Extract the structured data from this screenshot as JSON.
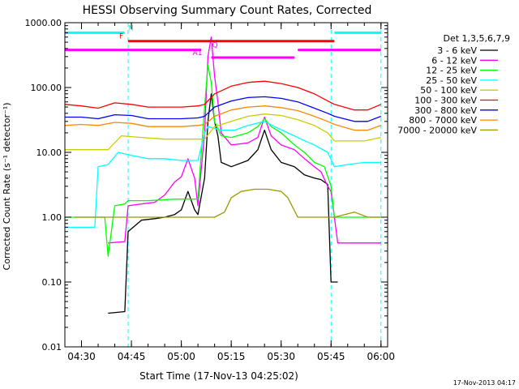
{
  "chart_data": {
    "type": "line",
    "title": "HESSI Observing Summary Count Rates, Corrected",
    "xlabel": "Start Time (17-Nov-13 04:25:02)",
    "ylabel": "Corrected Count Rate (s⁻¹ detector⁻¹)",
    "yscale": "log",
    "ylim": [
      0.01,
      1000
    ],
    "xlim": [
      "04:25",
      "06:02"
    ],
    "yticks": [
      {
        "v": 1000,
        "label": "1000.00"
      },
      {
        "v": 100,
        "label": "100.00"
      },
      {
        "v": 10,
        "label": "10.00"
      },
      {
        "v": 1,
        "label": "1.00"
      },
      {
        "v": 0.1,
        "label": "0.10"
      },
      {
        "v": 0.01,
        "label": "0.01"
      }
    ],
    "xticks": [
      {
        "t": "04:30",
        "label": "04:30"
      },
      {
        "t": "04:45",
        "label": "04:45"
      },
      {
        "t": "05:00",
        "label": "05:00"
      },
      {
        "t": "05:15",
        "label": "05:15"
      },
      {
        "t": "05:30",
        "label": "05:30"
      },
      {
        "t": "05:45",
        "label": "05:45"
      },
      {
        "t": "06:00",
        "label": "06:00"
      }
    ],
    "legend_title": "Det 1,3,5,6,7,9",
    "legend_position": "right",
    "footer": "17-Nov-2013 04:17",
    "flags": [
      {
        "label": "N",
        "color": "#00ffff",
        "segments": [
          [
            "04:25",
            "04:43"
          ],
          [
            "05:46",
            "06:00"
          ]
        ],
        "y": 700
      },
      {
        "label": "F",
        "color": "#ff0000",
        "segments": [
          [
            "04:44",
            "05:46"
          ]
        ],
        "y": 520
      },
      {
        "label": "A1",
        "color": "#ff00ff",
        "segments": [
          [
            "05:09",
            "05:34"
          ]
        ],
        "y": 290
      },
      {
        "label": "Q",
        "color": "#ff00ff",
        "segments": [
          [
            "04:25",
            "05:06"
          ],
          [
            "05:35",
            "06:00"
          ]
        ],
        "y": 380
      }
    ],
    "vlines": [
      {
        "t": "04:44",
        "color": "#00ffff",
        "style": "dashed"
      },
      {
        "t": "05:45",
        "color": "#00ffff",
        "style": "dashed"
      },
      {
        "t": "06:00",
        "color": "#00ffff",
        "style": "dashed"
      }
    ],
    "series": [
      {
        "name": "3 - 6 keV",
        "color": "#000000",
        "points": [
          [
            "04:38",
            0.033
          ],
          [
            "04:43",
            0.035
          ],
          [
            "04:44",
            0.6
          ],
          [
            "04:48",
            0.9
          ],
          [
            "04:52",
            0.95
          ],
          [
            "04:55",
            1.0
          ],
          [
            "04:58",
            1.1
          ],
          [
            "05:00",
            1.3
          ],
          [
            "05:02",
            2.5
          ],
          [
            "05:04",
            1.3
          ],
          [
            "05:05",
            1.1
          ],
          [
            "05:07",
            4
          ],
          [
            "05:08",
            30
          ],
          [
            "05:09",
            80
          ],
          [
            "05:10",
            30
          ],
          [
            "05:11",
            18
          ],
          [
            "05:12",
            7
          ],
          [
            "05:15",
            6
          ],
          [
            "05:20",
            7.5
          ],
          [
            "05:23",
            11
          ],
          [
            "05:25",
            22
          ],
          [
            "05:27",
            11
          ],
          [
            "05:30",
            7
          ],
          [
            "05:34",
            6
          ],
          [
            "05:37",
            4.5
          ],
          [
            "05:40",
            4
          ],
          [
            "05:42",
            3.8
          ],
          [
            "05:44",
            3.2
          ],
          [
            "05:45",
            0.1
          ],
          [
            "05:47",
            0.1
          ]
        ]
      },
      {
        "name": "6 - 12 keV",
        "color": "#ff00ff",
        "points": [
          [
            "04:38",
            0.4
          ],
          [
            "04:43",
            0.42
          ],
          [
            "04:44",
            1.5
          ],
          [
            "04:48",
            1.6
          ],
          [
            "04:52",
            1.7
          ],
          [
            "04:55",
            2.2
          ],
          [
            "04:58",
            3.5
          ],
          [
            "05:00",
            4.2
          ],
          [
            "05:02",
            8
          ],
          [
            "05:04",
            4
          ],
          [
            "05:05",
            1.5
          ],
          [
            "05:07",
            20
          ],
          [
            "05:08",
            300
          ],
          [
            "05:09",
            600
          ],
          [
            "05:10",
            150
          ],
          [
            "05:11",
            60
          ],
          [
            "05:12",
            20
          ],
          [
            "05:15",
            13
          ],
          [
            "05:20",
            14
          ],
          [
            "05:23",
            17
          ],
          [
            "05:25",
            35
          ],
          [
            "05:27",
            18
          ],
          [
            "05:30",
            13
          ],
          [
            "05:34",
            11
          ],
          [
            "05:37",
            8
          ],
          [
            "05:40",
            6
          ],
          [
            "05:42",
            5
          ],
          [
            "05:44",
            3
          ],
          [
            "05:45",
            2.5
          ],
          [
            "05:47",
            0.4
          ],
          [
            "06:00",
            0.4
          ]
        ]
      },
      {
        "name": "12 - 25 keV",
        "color": "#00ff00",
        "points": [
          [
            "04:25",
            1.0
          ],
          [
            "04:37",
            1.0
          ],
          [
            "04:38",
            0.25
          ],
          [
            "04:40",
            1.5
          ],
          [
            "04:43",
            1.6
          ],
          [
            "04:44",
            1.8
          ],
          [
            "04:50",
            1.8
          ],
          [
            "04:58",
            1.9
          ],
          [
            "05:00",
            1.9
          ],
          [
            "05:05",
            1.9
          ],
          [
            "05:07",
            50
          ],
          [
            "05:08",
            220
          ],
          [
            "05:09",
            120
          ],
          [
            "05:10",
            30
          ],
          [
            "05:12",
            18
          ],
          [
            "05:15",
            17
          ],
          [
            "05:20",
            20
          ],
          [
            "05:23",
            25
          ],
          [
            "05:25",
            33
          ],
          [
            "05:27",
            25
          ],
          [
            "05:30",
            20
          ],
          [
            "05:34",
            13
          ],
          [
            "05:37",
            10
          ],
          [
            "05:40",
            7
          ],
          [
            "05:43",
            6
          ],
          [
            "05:45",
            3
          ],
          [
            "05:46",
            1.0
          ],
          [
            "06:00",
            1.0
          ]
        ]
      },
      {
        "name": "25 - 50 keV",
        "color": "#00ffff",
        "points": [
          [
            "04:25",
            0.7
          ],
          [
            "04:34",
            0.7
          ],
          [
            "04:35",
            6
          ],
          [
            "04:38",
            6.5
          ],
          [
            "04:41",
            10
          ],
          [
            "04:45",
            9
          ],
          [
            "04:50",
            8
          ],
          [
            "04:55",
            8
          ],
          [
            "05:00",
            7.5
          ],
          [
            "05:05",
            7.5
          ],
          [
            "05:07",
            20
          ],
          [
            "05:08",
            25
          ],
          [
            "05:12",
            22
          ],
          [
            "05:16",
            22
          ],
          [
            "05:20",
            26
          ],
          [
            "05:25",
            30
          ],
          [
            "05:28",
            25
          ],
          [
            "05:32",
            20
          ],
          [
            "05:36",
            16
          ],
          [
            "05:40",
            13
          ],
          [
            "05:44",
            10
          ],
          [
            "05:46",
            6
          ],
          [
            "05:50",
            6.5
          ],
          [
            "05:55",
            7
          ],
          [
            "06:00",
            7
          ]
        ]
      },
      {
        "name": "50 - 100 keV",
        "color": "#cccc00",
        "points": [
          [
            "04:25",
            11
          ],
          [
            "04:38",
            11
          ],
          [
            "04:42",
            18
          ],
          [
            "04:48",
            17
          ],
          [
            "04:55",
            16
          ],
          [
            "05:00",
            16
          ],
          [
            "05:07",
            16
          ],
          [
            "05:10",
            25
          ],
          [
            "05:15",
            30
          ],
          [
            "05:20",
            36
          ],
          [
            "05:25",
            39
          ],
          [
            "05:30",
            37
          ],
          [
            "05:35",
            32
          ],
          [
            "05:40",
            26
          ],
          [
            "05:44",
            20
          ],
          [
            "05:46",
            15
          ],
          [
            "05:50",
            15
          ],
          [
            "05:55",
            15
          ],
          [
            "06:00",
            17
          ]
        ]
      },
      {
        "name": "100 - 300 keV",
        "color": "#ff0000",
        "points": [
          [
            "04:25",
            55
          ],
          [
            "04:30",
            52
          ],
          [
            "04:35",
            48
          ],
          [
            "04:40",
            58
          ],
          [
            "04:45",
            55
          ],
          [
            "04:50",
            50
          ],
          [
            "04:55",
            50
          ],
          [
            "05:00",
            50
          ],
          [
            "05:05",
            52
          ],
          [
            "05:07",
            55
          ],
          [
            "05:10",
            80
          ],
          [
            "05:15",
            105
          ],
          [
            "05:20",
            120
          ],
          [
            "05:25",
            125
          ],
          [
            "05:30",
            115
          ],
          [
            "05:35",
            100
          ],
          [
            "05:40",
            80
          ],
          [
            "05:44",
            62
          ],
          [
            "05:46",
            55
          ],
          [
            "05:52",
            45
          ],
          [
            "05:56",
            45
          ],
          [
            "06:00",
            55
          ]
        ]
      },
      {
        "name": "300 - 800 keV",
        "color": "#0000ff",
        "points": [
          [
            "04:25",
            35
          ],
          [
            "04:30",
            35
          ],
          [
            "04:35",
            33
          ],
          [
            "04:40",
            38
          ],
          [
            "04:45",
            37
          ],
          [
            "04:50",
            33
          ],
          [
            "04:55",
            33
          ],
          [
            "05:00",
            33
          ],
          [
            "05:05",
            34
          ],
          [
            "05:07",
            36
          ],
          [
            "05:10",
            50
          ],
          [
            "05:15",
            62
          ],
          [
            "05:20",
            70
          ],
          [
            "05:25",
            72
          ],
          [
            "05:30",
            68
          ],
          [
            "05:35",
            60
          ],
          [
            "05:40",
            48
          ],
          [
            "05:44",
            40
          ],
          [
            "05:46",
            36
          ],
          [
            "05:52",
            30
          ],
          [
            "05:56",
            30
          ],
          [
            "06:00",
            36
          ]
        ]
      },
      {
        "name": "800 - 7000 keV",
        "color": "#ff8800",
        "points": [
          [
            "04:25",
            26
          ],
          [
            "04:30",
            27
          ],
          [
            "04:35",
            26
          ],
          [
            "04:40",
            29
          ],
          [
            "04:45",
            28
          ],
          [
            "04:50",
            25
          ],
          [
            "04:55",
            25
          ],
          [
            "05:00",
            25
          ],
          [
            "05:05",
            26
          ],
          [
            "05:07",
            27
          ],
          [
            "05:10",
            36
          ],
          [
            "05:15",
            45
          ],
          [
            "05:20",
            50
          ],
          [
            "05:25",
            52
          ],
          [
            "05:30",
            49
          ],
          [
            "05:35",
            44
          ],
          [
            "05:40",
            36
          ],
          [
            "05:44",
            30
          ],
          [
            "05:46",
            27
          ],
          [
            "05:52",
            22
          ],
          [
            "05:56",
            22
          ],
          [
            "06:00",
            26
          ]
        ]
      },
      {
        "name": "7000 - 20000 keV",
        "color": "#999900",
        "points": [
          [
            "04:28",
            1.0
          ],
          [
            "04:37",
            1.0
          ],
          [
            "05:05",
            1.0
          ],
          [
            "05:07",
            1.0
          ],
          [
            "05:10",
            1.0
          ],
          [
            "05:13",
            1.2
          ],
          [
            "05:15",
            2
          ],
          [
            "05:18",
            2.5
          ],
          [
            "05:22",
            2.7
          ],
          [
            "05:26",
            2.7
          ],
          [
            "05:30",
            2.5
          ],
          [
            "05:32",
            2
          ],
          [
            "05:35",
            1.0
          ],
          [
            "05:45",
            1.0
          ],
          [
            "05:46",
            1.0
          ],
          [
            "05:52",
            1.2
          ],
          [
            "05:56",
            1.0
          ],
          [
            "06:00",
            1.0
          ]
        ]
      }
    ]
  }
}
